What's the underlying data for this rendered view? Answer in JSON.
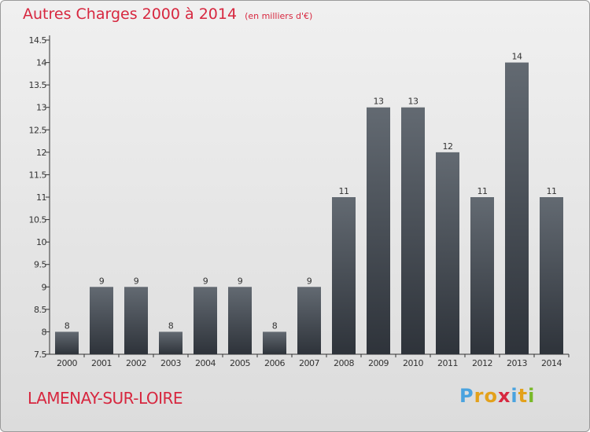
{
  "header": {
    "title": "Autres Charges 2000 à 2014",
    "subtitle": "(en milliers d'€)"
  },
  "footer": {
    "commune": "LAMENAY-SUR-LOIRE",
    "logo_letters": [
      "P",
      "r",
      "o",
      "x",
      "i",
      "t",
      "i"
    ],
    "logo_colors": [
      "#4aa3df",
      "#e3a11b",
      "#e3a11b",
      "#d7273f",
      "#4aa3df",
      "#e3a11b",
      "#79b928"
    ]
  },
  "colors": {
    "title": "#d7273f",
    "bar_top": "#636a72",
    "bar_bottom": "#2e333a",
    "axis": "#333333"
  },
  "chart_data": {
    "type": "bar",
    "categories": [
      "2000",
      "2001",
      "2002",
      "2003",
      "2004",
      "2005",
      "2006",
      "2007",
      "2008",
      "2009",
      "2010",
      "2011",
      "2012",
      "2013",
      "2014"
    ],
    "values": [
      8,
      9,
      9,
      8,
      9,
      9,
      8,
      9,
      11,
      13,
      13,
      12,
      11,
      14,
      11
    ],
    "data_labels": [
      "8",
      "9",
      "9",
      "8",
      "9",
      "9",
      "8",
      "9",
      "11",
      "13",
      "13",
      "12",
      "11",
      "14",
      "11"
    ],
    "title": "Autres Charges 2000 à 2014",
    "xlabel": "",
    "ylabel": "",
    "ylim": [
      7.5,
      14.5
    ],
    "yticks": [
      "7.5",
      "8",
      "8.5",
      "9",
      "9.5",
      "10",
      "10.5",
      "11",
      "11.5",
      "12",
      "12.5",
      "13",
      "13.5",
      "14",
      "14.5"
    ],
    "grid": false
  }
}
